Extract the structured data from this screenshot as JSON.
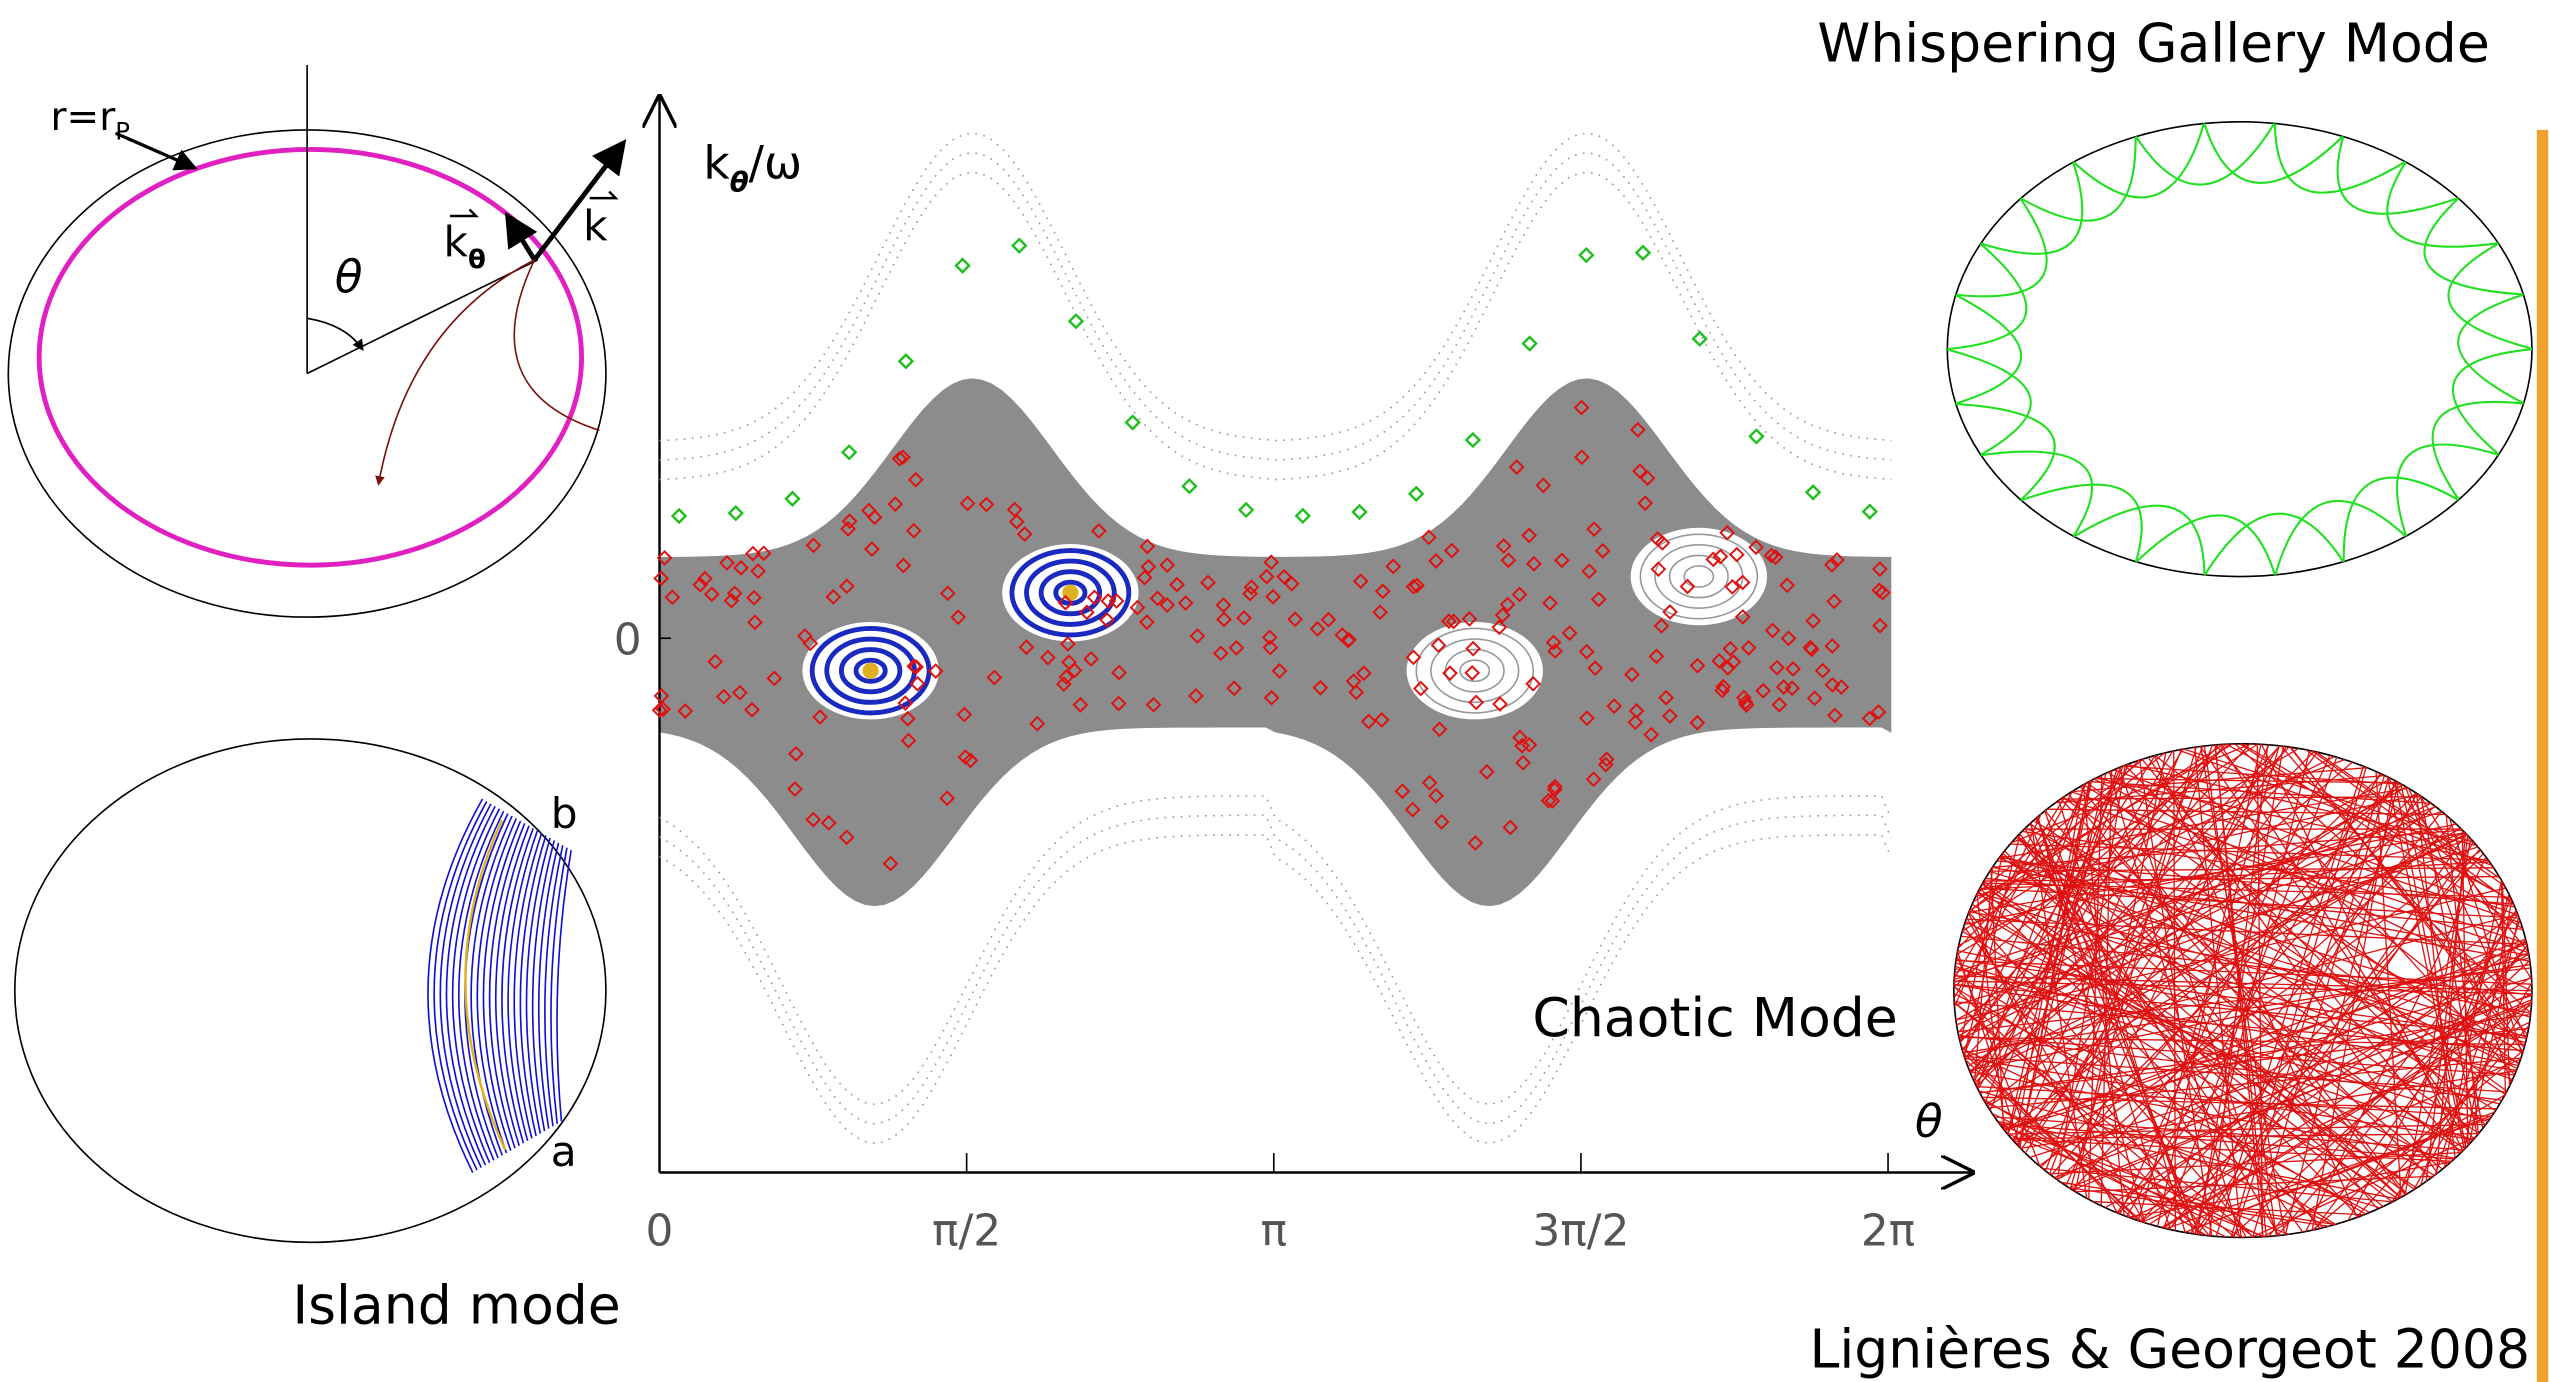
{
  "ray_diagram": {
    "radius_label": "r=r",
    "radius_subscript": "P",
    "angle": "θ",
    "k_theta": "k",
    "k_theta_subscript": "θ",
    "k": "k"
  },
  "island": {
    "title": "Island mode",
    "point_a": "a",
    "point_b": "b"
  },
  "phase_space": {
    "y_label": "k",
    "y_label_subscript": "θ",
    "y_label_suffix": "/ω",
    "x_label": "θ",
    "yticks": [
      {
        "value": 0,
        "label": "0"
      }
    ],
    "xticks": [
      {
        "value": 0,
        "label": "0"
      },
      {
        "value": 1.5708,
        "label": "π/2"
      },
      {
        "value": 3.1416,
        "label": "π"
      },
      {
        "value": 4.7124,
        "label": "3π/2"
      },
      {
        "value": 6.2832,
        "label": "2π"
      }
    ]
  },
  "whispering": {
    "title": "Whispering Gallery Mode"
  },
  "chaotic": {
    "title": "Chaotic Mode"
  },
  "citation": "Lignières & Georgeot 2008"
}
